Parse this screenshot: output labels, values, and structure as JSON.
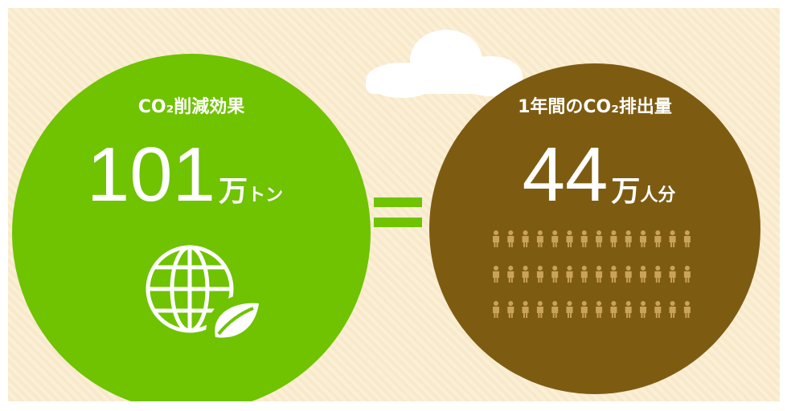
{
  "left": {
    "title": "CO₂削減効果",
    "number": "101",
    "unit_large": "万",
    "unit_small": "トン"
  },
  "right": {
    "title": "1年間のCO₂排出量",
    "number": "44",
    "unit_large": "万",
    "unit_small": "人分"
  }
}
